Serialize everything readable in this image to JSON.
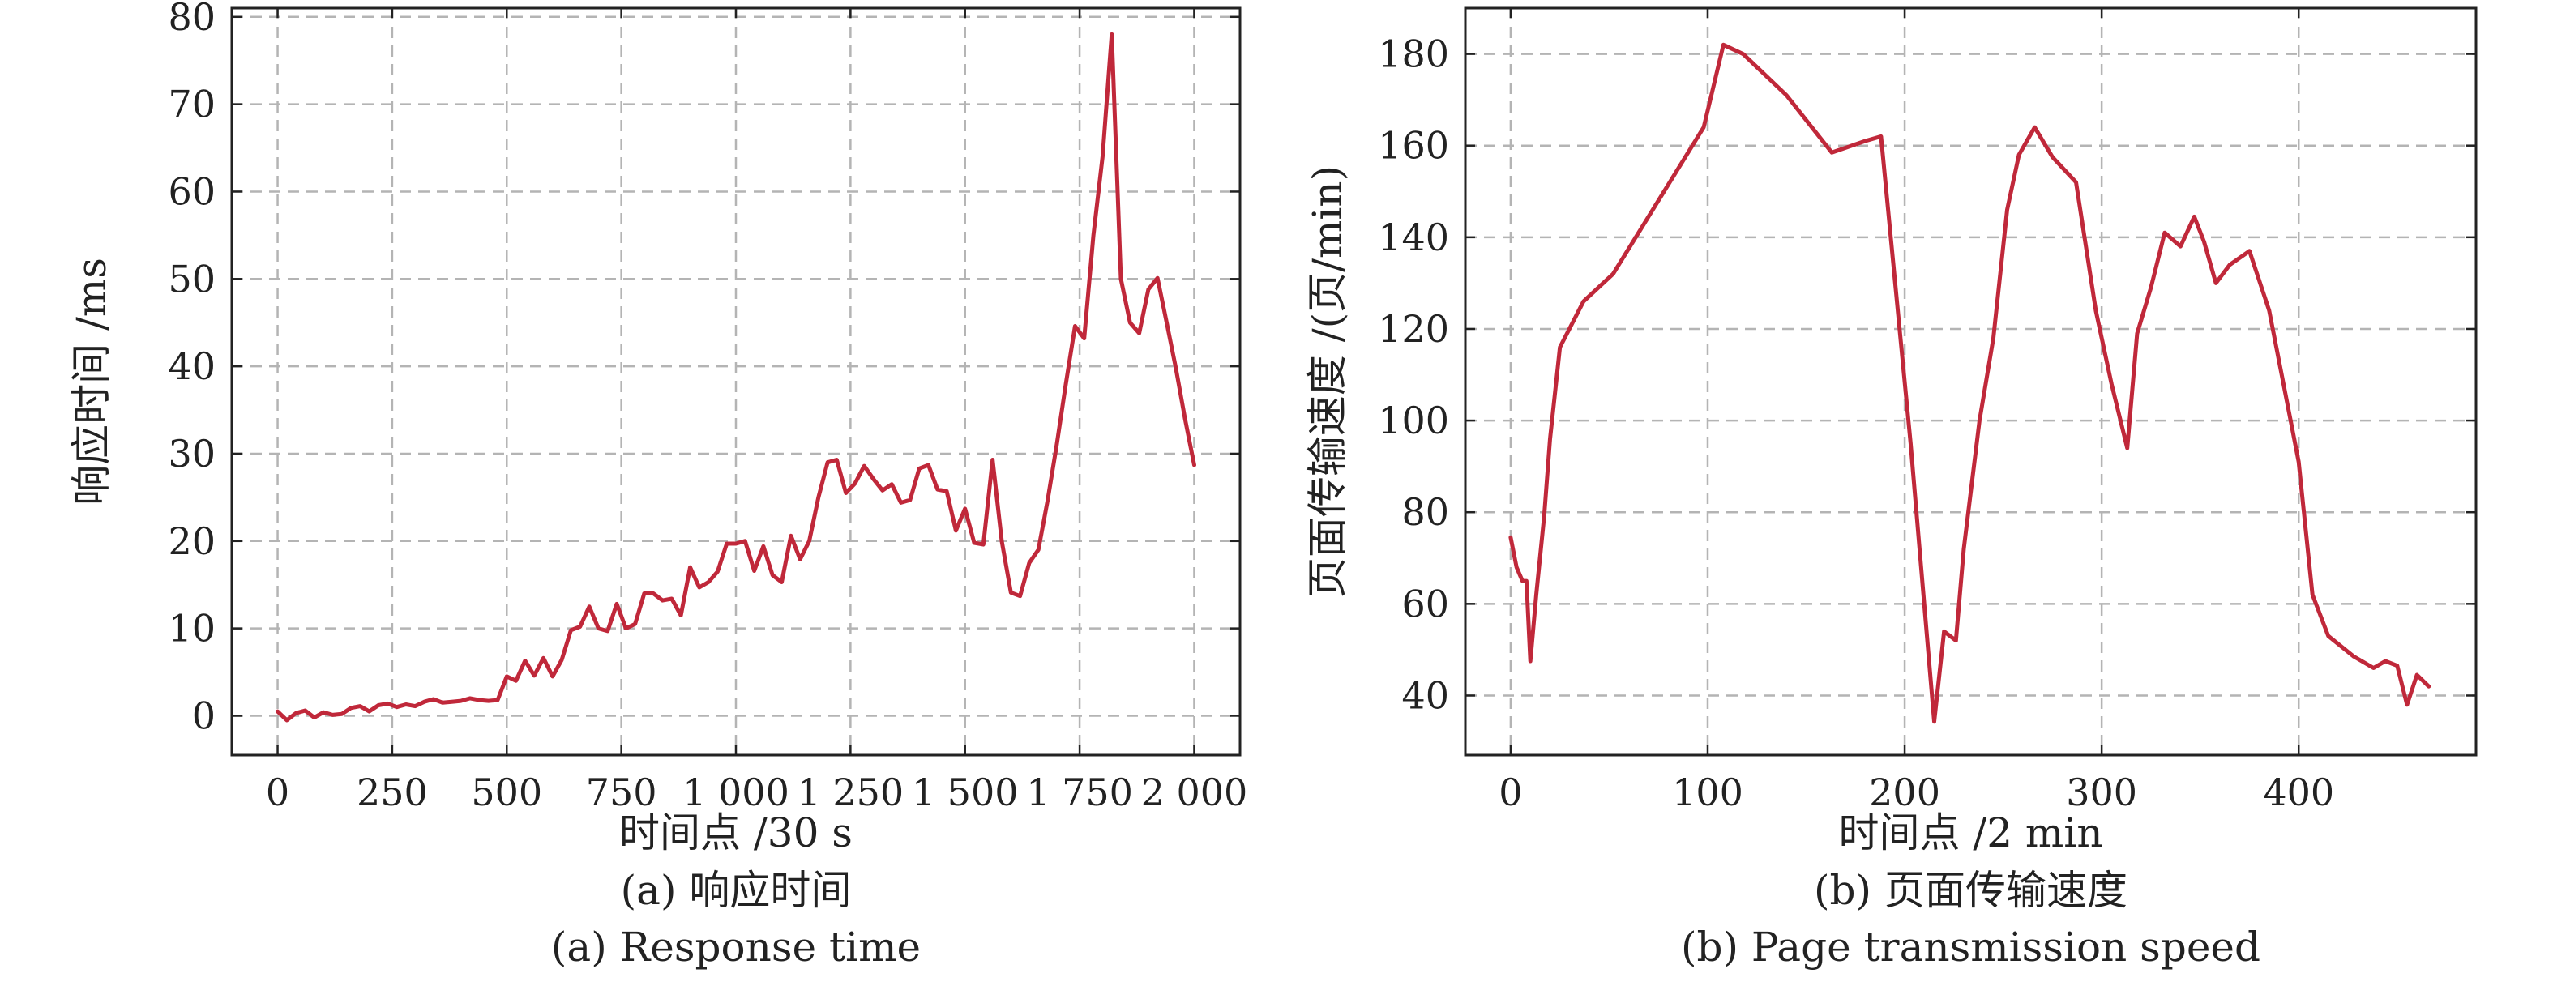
{
  "colors": {
    "line": "#c0283a",
    "grid": "#b4b4b4",
    "axis": "#222222"
  },
  "chart_data": [
    {
      "type": "line",
      "xlabel": "时间点 /30 s",
      "ylabel": "响应时间 /ms",
      "caption_cn": "(a) 响应时间",
      "caption_en": "(a) Response time",
      "xlim": [
        -100,
        2100
      ],
      "ylim": [
        -4.5,
        81
      ],
      "xticks": [
        0,
        250,
        500,
        750,
        1000,
        1250,
        1500,
        1750,
        2000
      ],
      "xtick_labels": [
        "0",
        "250",
        "500",
        "750",
        "1 000",
        "1 250",
        "1 500",
        "1 750",
        "2 000"
      ],
      "yticks": [
        0,
        10,
        20,
        30,
        40,
        50,
        60,
        70,
        80
      ],
      "ytick_labels": [
        "0",
        "10",
        "20",
        "30",
        "40",
        "50",
        "60",
        "70",
        "80"
      ],
      "grid": true,
      "series": [
        {
          "x": [
            0,
            20,
            40,
            60,
            80,
            100,
            120,
            140,
            160,
            180,
            200,
            220,
            240,
            260,
            280,
            300,
            320,
            340,
            360,
            380,
            400,
            420,
            440,
            460,
            480,
            500,
            520,
            540,
            560,
            580,
            600,
            620,
            640,
            660,
            680,
            700,
            720,
            740,
            760,
            780,
            800,
            820,
            840,
            860,
            880,
            900,
            920,
            940,
            960,
            980,
            1000,
            1020,
            1040,
            1060,
            1080,
            1100,
            1120,
            1140,
            1160,
            1180,
            1200,
            1220,
            1240,
            1260,
            1280,
            1300,
            1320,
            1340,
            1360,
            1380,
            1400,
            1420,
            1440,
            1460,
            1480,
            1500,
            1520,
            1540,
            1560,
            1580,
            1600,
            1620,
            1640,
            1660,
            1680,
            1700,
            1720,
            1740,
            1760,
            1780,
            1800,
            1820,
            1840,
            1860,
            1880,
            1900,
            1920,
            1940,
            1960,
            1980,
            2000
          ],
          "y": [
            0.5,
            -0.5,
            0.3,
            0.6,
            -0.2,
            0.4,
            0.1,
            0.2,
            0.9,
            1.1,
            0.5,
            1.2,
            1.4,
            1.0,
            1.3,
            1.1,
            1.6,
            1.9,
            1.5,
            1.6,
            1.7,
            2.0,
            1.8,
            1.7,
            1.8,
            4.5,
            4.0,
            6.3,
            4.6,
            6.6,
            4.5,
            6.4,
            9.8,
            10.2,
            12.5,
            10.0,
            9.7,
            12.8,
            10.0,
            10.5,
            14.0,
            14.0,
            13.2,
            13.4,
            11.5,
            17.0,
            14.7,
            15.3,
            16.5,
            19.7,
            19.7,
            20.0,
            16.6,
            19.4,
            16.1,
            15.3,
            20.6,
            17.9,
            20.0,
            25.0,
            29.0,
            29.3,
            25.5,
            26.6,
            28.6,
            27.1,
            25.8,
            26.5,
            24.4,
            24.7,
            28.3,
            28.7,
            25.9,
            25.7,
            21.2,
            23.7,
            19.8,
            19.6,
            29.3,
            20.0,
            14.1,
            13.7,
            17.5,
            19.0,
            24.6,
            31.0,
            38.0,
            44.6,
            43.2,
            55.0,
            64.0,
            78.0,
            50.0,
            45.0,
            43.8,
            48.8,
            50.1,
            45.0,
            39.8,
            34.0,
            28.7
          ]
        }
      ]
    },
    {
      "type": "line",
      "xlabel": "时间点 /2 min",
      "ylabel": "页面传输速度 /(页/min)",
      "caption_cn": "(b) 页面传输速度",
      "caption_en": "(b) Page transmission speed",
      "xlim": [
        -23,
        490
      ],
      "ylim": [
        27,
        190
      ],
      "xticks": [
        0,
        100,
        200,
        300,
        400
      ],
      "xtick_labels": [
        "0",
        "100",
        "200",
        "300",
        "400"
      ],
      "yticks": [
        40,
        60,
        80,
        100,
        120,
        140,
        160,
        180
      ],
      "ytick_labels": [
        "40",
        "60",
        "80",
        "100",
        "120",
        "140",
        "160",
        "180"
      ],
      "grid": true,
      "series": [
        {
          "x": [
            0,
            3,
            6,
            8,
            10,
            13,
            17,
            20,
            25,
            37,
            52,
            98,
            108,
            118,
            140,
            163,
            180,
            188,
            203,
            215,
            220,
            226,
            230,
            238,
            245,
            252,
            258,
            266,
            275,
            287,
            297,
            305,
            313,
            318,
            325,
            332,
            340,
            347,
            352,
            358,
            365,
            375,
            385,
            400,
            407,
            415,
            428,
            438,
            444,
            450,
            455,
            460,
            466
          ],
          "y": [
            74.5,
            68,
            65,
            65,
            47.5,
            62,
            79,
            96,
            116,
            126,
            132,
            164,
            182,
            180,
            171,
            158.5,
            161,
            162,
            95,
            34.3,
            54,
            52,
            72,
            100,
            118,
            146,
            158,
            164,
            157.5,
            152,
            124,
            108,
            94,
            119,
            129,
            141,
            138,
            144.5,
            139,
            130,
            134,
            137,
            124,
            91,
            62,
            53,
            48.5,
            46,
            47.5,
            46.5,
            38,
            44.5,
            42
          ]
        }
      ]
    }
  ]
}
